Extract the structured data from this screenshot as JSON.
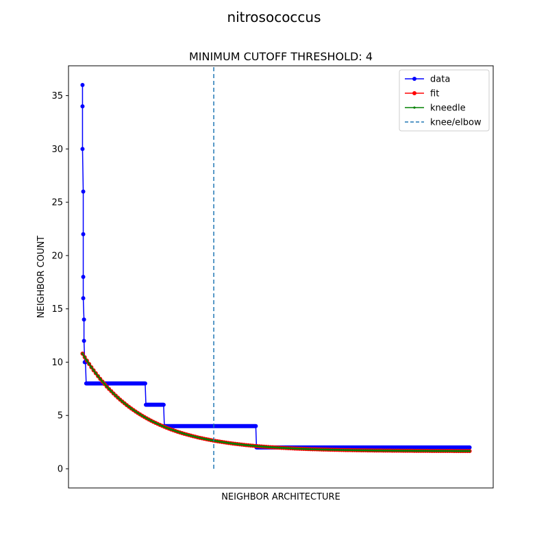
{
  "figure": {
    "suptitle": "nitrosococcus"
  },
  "chart_data": {
    "type": "line",
    "title": "MINIMUM CUTOFF THRESHOLD: 4",
    "xlabel": "NEIGHBOR ARCHITECTURE",
    "ylabel": "NEIGHBOR COUNT",
    "xlim": [
      -19,
      557
    ],
    "ylim": [
      -1.8,
      37.8
    ],
    "x_ticks_visible": false,
    "y_ticks": [
      0,
      5,
      10,
      15,
      20,
      25,
      30,
      35
    ],
    "grid": false,
    "legend": {
      "position": "top-right",
      "entries": [
        {
          "label": "data",
          "style": "line-dot",
          "color": "#0000ff"
        },
        {
          "label": "fit",
          "style": "line-dot",
          "color": "#ff0000"
        },
        {
          "label": "kneedle",
          "style": "line-small-dot",
          "color": "#008000"
        },
        {
          "label": "knee/elbow",
          "style": "dashed",
          "color": "#1f77b4"
        }
      ]
    },
    "series": [
      {
        "name": "data",
        "color": "#0000ff",
        "marker": "o",
        "segments": [
          {
            "x": [
              0,
              0,
              0,
              1,
              1,
              1,
              1,
              2,
              2,
              3,
              4
            ],
            "y": [
              36,
              34,
              30,
              26,
              22,
              18,
              16,
              14,
              12,
              10,
              10
            ]
          },
          {
            "x_start": 5,
            "x_end": 85,
            "y": 8
          },
          {
            "x_start": 86,
            "x_end": 110,
            "y": 6
          },
          {
            "x_start": 111,
            "x_end": 235,
            "y": 4
          },
          {
            "x_start": 236,
            "x_end": 525,
            "y": 2
          }
        ]
      },
      {
        "name": "fit",
        "color": "#ff0000",
        "marker": "o",
        "model": "exponential_decay",
        "a": 9.15,
        "b": 0.0125,
        "c": 1.65,
        "x_range": [
          0,
          525
        ],
        "x_start": 0,
        "y_start": 10.8,
        "y_end": 1.7
      },
      {
        "name": "kneedle",
        "color": "#008000",
        "marker": ".",
        "model": "exponential_decay",
        "a": 9.15,
        "b": 0.0125,
        "c": 1.65,
        "x_range": [
          0,
          525
        ],
        "x_start": 0,
        "y_start": 10.8,
        "y_end": 1.7
      }
    ],
    "knee": {
      "label": "knee/elbow",
      "x": 178,
      "y_range": [
        0,
        37.8
      ],
      "color": "#1f77b4",
      "style": "dashed"
    }
  }
}
